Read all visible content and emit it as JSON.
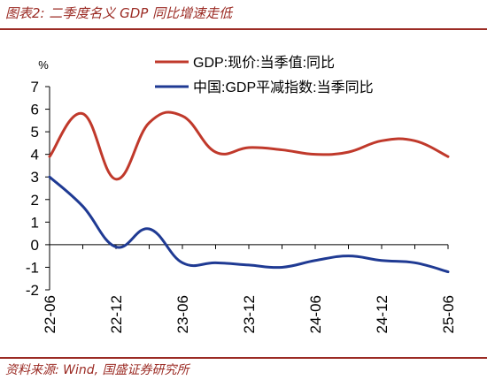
{
  "header": {
    "title": "图表2:  二季度名义 GDP 同比增速走低"
  },
  "footer": {
    "source": "资料来源:  Wind,  国盛证券研究所"
  },
  "colors": {
    "title_red": "#9b2b24",
    "series_red": "#c0392b",
    "series_blue": "#1f3a93",
    "axis": "#000000"
  },
  "chart_data": {
    "type": "line",
    "ylabel": "%",
    "ylim": [
      -2,
      7
    ],
    "yticks": [
      -2,
      -1,
      0,
      1,
      2,
      3,
      4,
      5,
      6,
      7
    ],
    "grid": false,
    "legend_position": "top-right",
    "x_tick_labels": [
      "22-06",
      "22-12",
      "23-06",
      "23-12",
      "24-06",
      "24-12",
      "25-06"
    ],
    "x": [
      "22-06",
      "22-09",
      "22-12",
      "23-03",
      "23-06",
      "23-09",
      "23-12",
      "24-03",
      "24-06",
      "24-09",
      "24-12",
      "25-03",
      "25-06"
    ],
    "series": [
      {
        "name": "GDP:现价:当季值:同比",
        "color": "#c0392b",
        "values": [
          3.9,
          5.8,
          2.9,
          5.4,
          5.7,
          4.1,
          4.3,
          4.2,
          4.0,
          4.1,
          4.6,
          4.6,
          3.9
        ]
      },
      {
        "name": "中国:GDP平减指数:当季同比",
        "color": "#1f3a93",
        "values": [
          3.0,
          1.7,
          -0.1,
          0.7,
          -0.8,
          -0.8,
          -0.9,
          -1.0,
          -0.7,
          -0.5,
          -0.7,
          -0.8,
          -1.2
        ]
      }
    ]
  }
}
